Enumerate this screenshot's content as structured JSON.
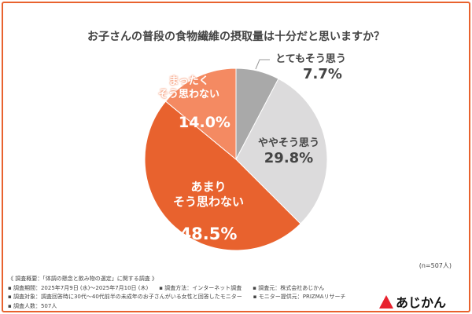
{
  "chart_data": {
    "type": "pie",
    "title": "お子さんの普段の食物繊維の摂取量は十分だと思いますか？",
    "slices": [
      {
        "label": "とてもそう思う",
        "value": 7.7,
        "display": "7.7%",
        "color": "#a9a9a9"
      },
      {
        "label": "ややそう思う",
        "value": 29.8,
        "display": "29.8%",
        "color": "#dcdbdc"
      },
      {
        "label": "あまり\nそう思わない",
        "value": 48.5,
        "display": "48.5%",
        "color": "#e8622e"
      },
      {
        "label": "まったく\nそう思わない",
        "value": 14.0,
        "display": "14.0%",
        "color": "#f48a62"
      }
    ],
    "start": "top",
    "direction": "clockwise"
  },
  "sample_note": "(n=507人)",
  "footer": {
    "heading": "《 調査概要：「体調の懸念と飲み物の選定」に関する調査 》",
    "lines": [
      [
        "▪ 調査期間：2025年7月9日 (水)～2025年7月10日 (木)",
        "▪ 調査方法：インターネット調査",
        "▪ 調査元：株式会社あじかん"
      ],
      [
        "▪ 調査対象：調査回答時に30代～40代前半の未成年のお子さんがいる女性と回答したモニター",
        "▪ モニター提供元：PRIZMAリサーチ"
      ],
      [
        "▪ 調査人数：507人"
      ]
    ]
  },
  "brand": {
    "name": "あじかん",
    "color": "#e8222e"
  }
}
